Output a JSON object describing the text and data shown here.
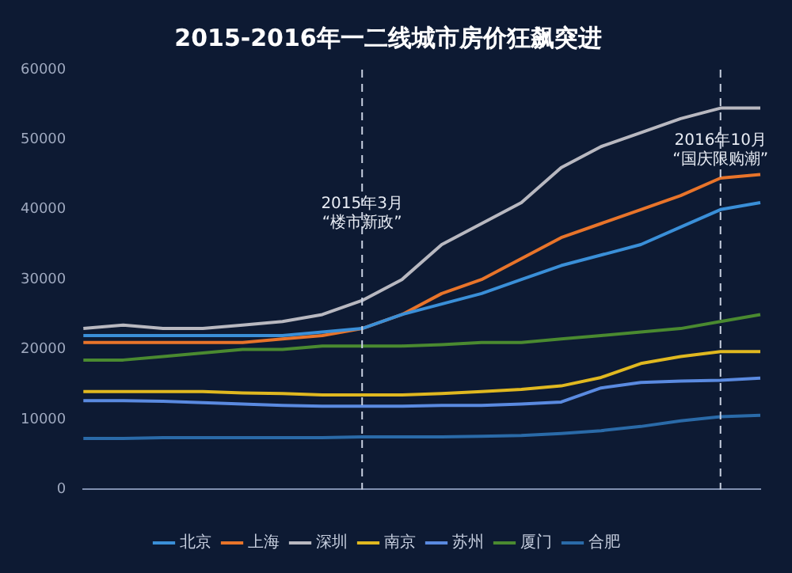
{
  "chart_data": {
    "type": "line",
    "title": "2015-2016年一二线城市房价狂飙突进",
    "categories": [
      null,
      null,
      null,
      null,
      null,
      null,
      null,
      null,
      null,
      null,
      null,
      null,
      null,
      null,
      null,
      null,
      null,
      null
    ],
    "ylim": [
      0,
      60000
    ],
    "yticks": [
      0,
      10000,
      20000,
      30000,
      40000,
      50000,
      60000
    ],
    "grid": false,
    "legend": "bottom",
    "marker": "none",
    "line_style": "solid",
    "annotations": [
      "2015年3月\n“楼市新政”",
      "2016年10月\n“国庆限购潮”"
    ],
    "series": [
      {
        "name": "北京",
        "color": "#3a8fd8",
        "values": [
          22000,
          22000,
          22000,
          22000,
          22000,
          22000,
          22500,
          23000,
          25000,
          26500,
          28000,
          30000,
          32000,
          33500,
          35000,
          37500,
          40000,
          41000
        ]
      },
      {
        "name": "上海",
        "color": "#e8742a",
        "values": [
          21000,
          21000,
          21000,
          21000,
          21000,
          21500,
          22000,
          23000,
          25000,
          28000,
          30000,
          33000,
          36000,
          38000,
          40000,
          42000,
          44500,
          45000
        ]
      },
      {
        "name": "深圳",
        "color": "#b8b8c0",
        "values": [
          23000,
          23500,
          23000,
          23000,
          23500,
          24000,
          25000,
          27000,
          30000,
          35000,
          38000,
          41000,
          46000,
          49000,
          51000,
          53000,
          54500,
          54500
        ]
      },
      {
        "name": "南京",
        "color": "#e0b820",
        "values": [
          14000,
          14000,
          14000,
          14000,
          13800,
          13700,
          13500,
          13500,
          13500,
          13700,
          14000,
          14300,
          14800,
          16000,
          18000,
          19000,
          19700,
          19700
        ]
      },
      {
        "name": "苏州",
        "color": "#5a8ae0",
        "values": [
          12700,
          12700,
          12600,
          12400,
          12200,
          12000,
          11900,
          11900,
          11900,
          12000,
          12000,
          12200,
          12500,
          14500,
          15300,
          15500,
          15600,
          15900
        ]
      },
      {
        "name": "厦门",
        "color": "#4a8a30",
        "values": [
          18500,
          18500,
          19000,
          19500,
          20000,
          20000,
          20500,
          20500,
          20500,
          20700,
          21000,
          21000,
          21500,
          22000,
          22500,
          23000,
          24000,
          25000
        ]
      },
      {
        "name": "合肥",
        "color": "#2a6aa8",
        "values": [
          7300,
          7300,
          7400,
          7400,
          7400,
          7400,
          7400,
          7500,
          7500,
          7500,
          7600,
          7700,
          8000,
          8400,
          9000,
          9800,
          10400,
          10600
        ]
      }
    ]
  }
}
